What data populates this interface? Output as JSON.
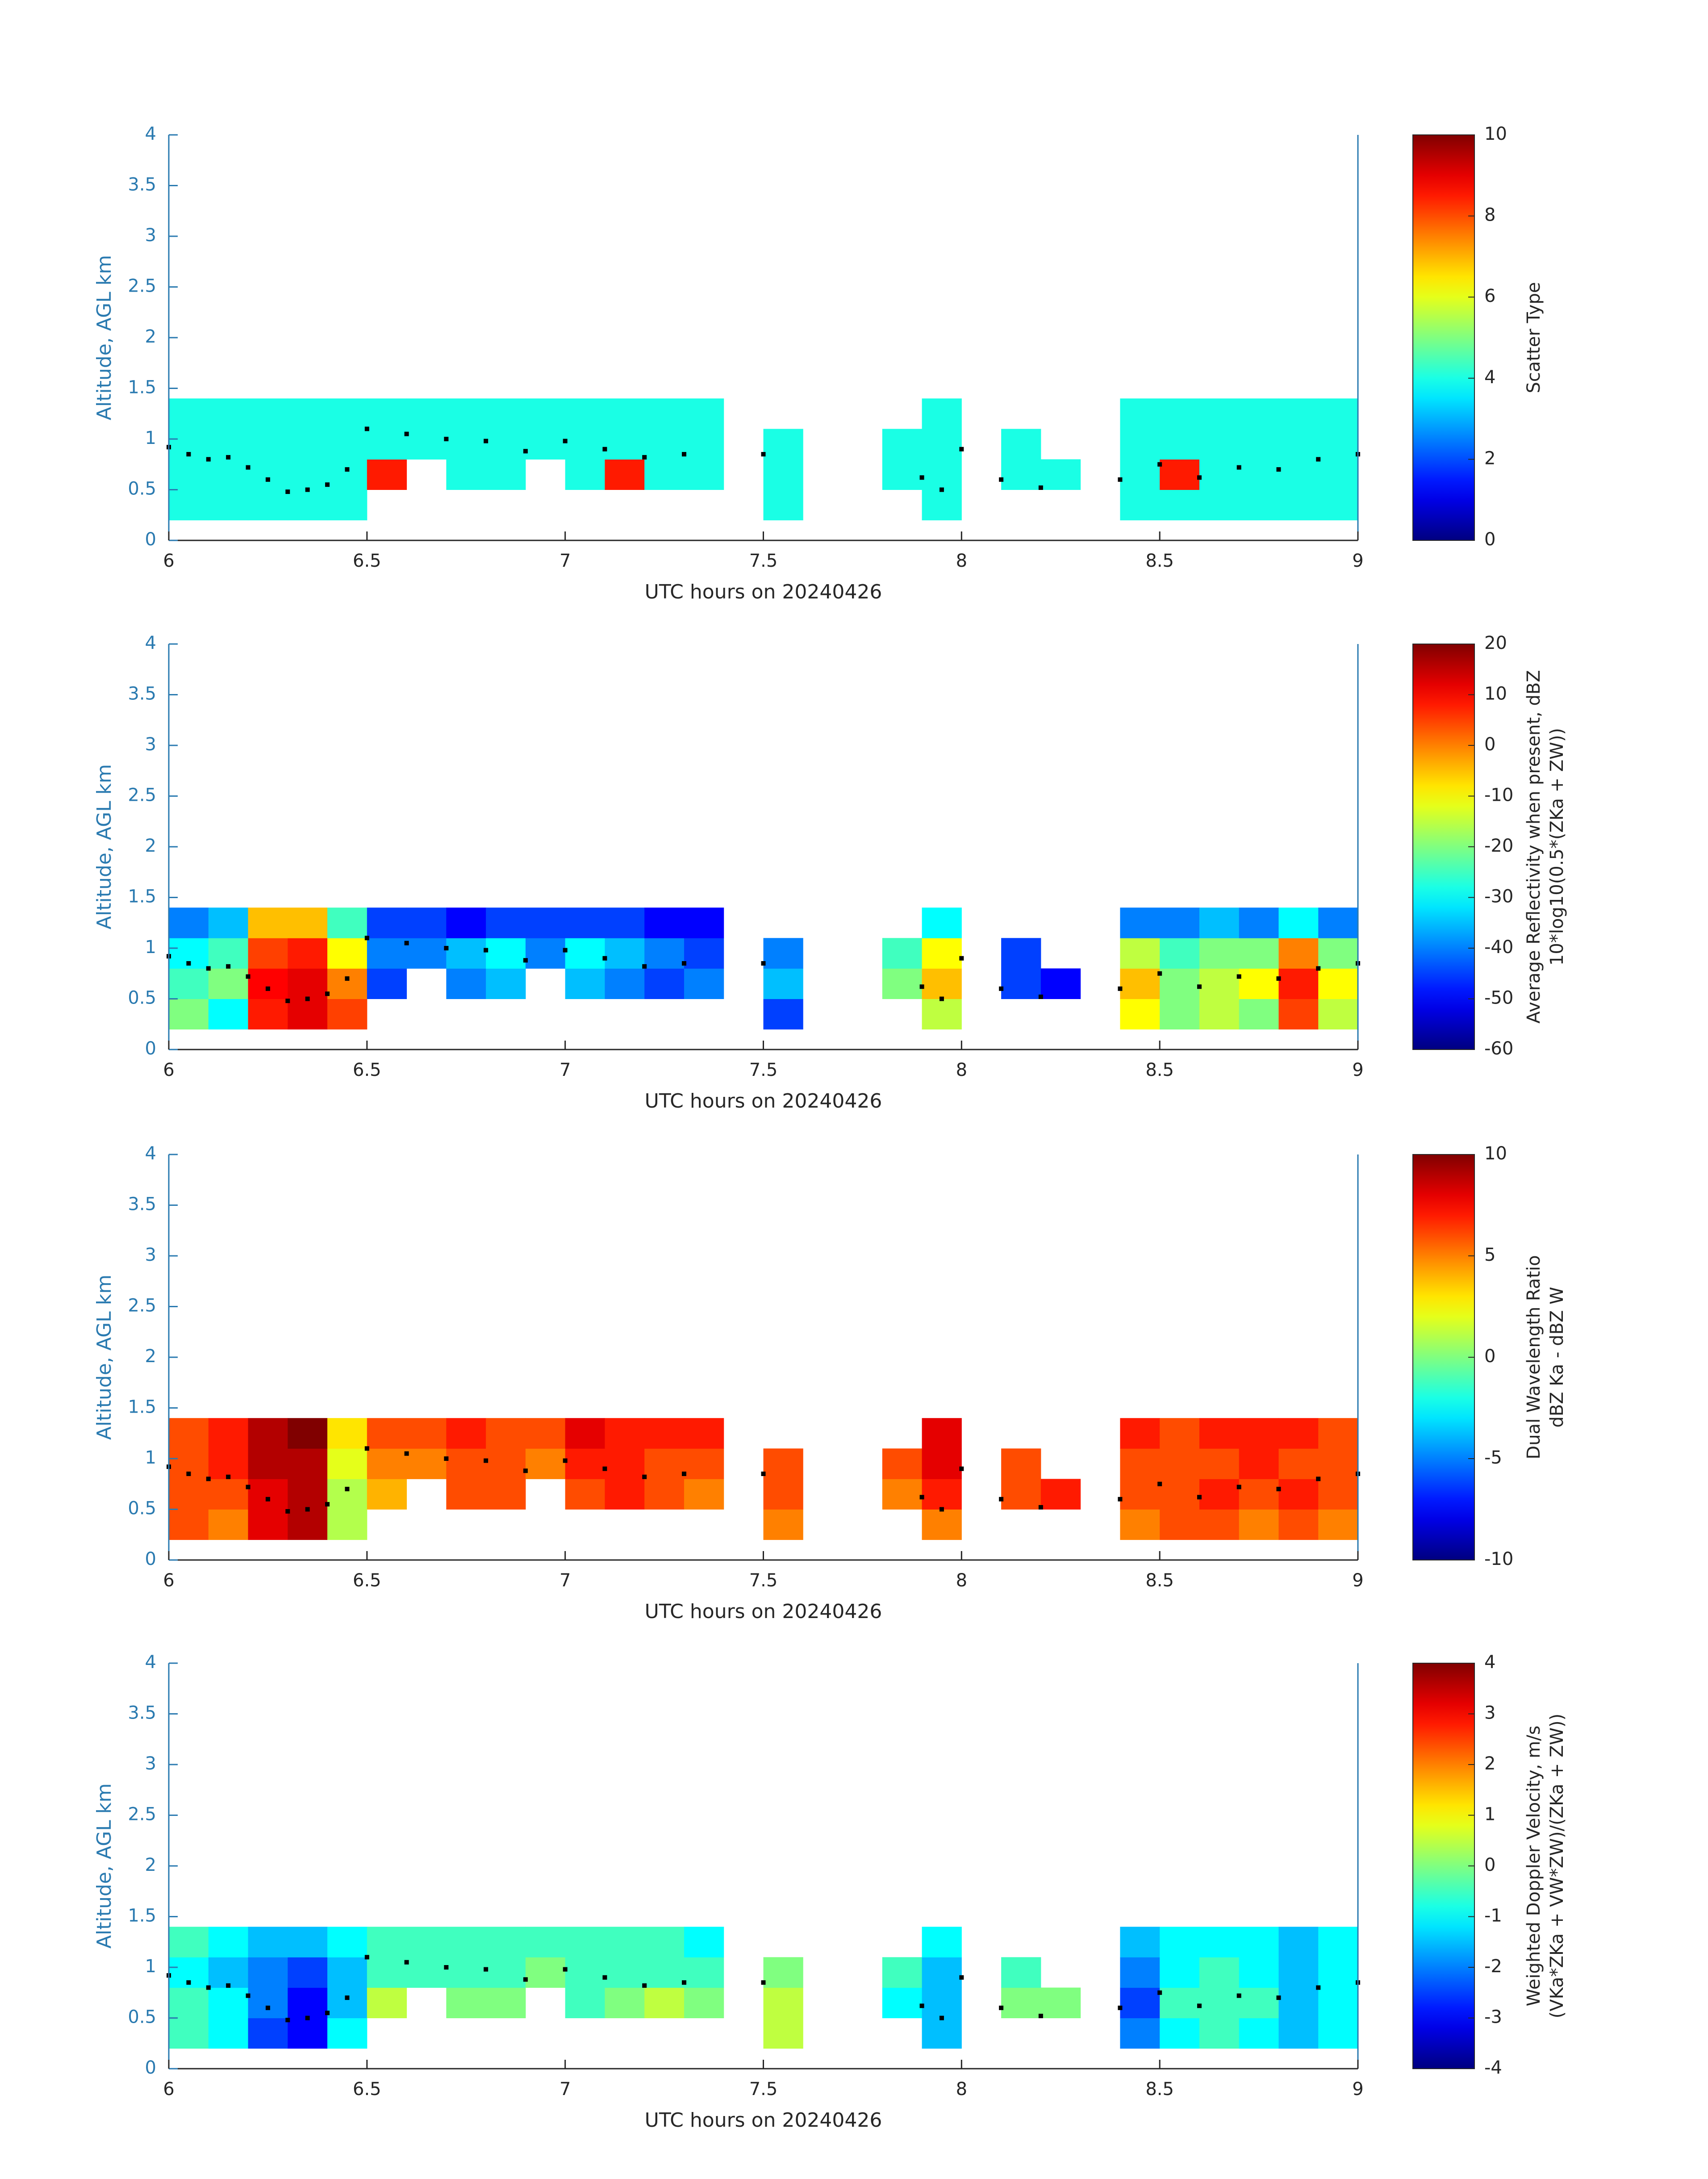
{
  "chart_data": [
    {
      "type": "heatmap",
      "xlabel": "UTC hours on 20240426",
      "ylabel": "Altitude, AGL km",
      "xlim": [
        6,
        9
      ],
      "xticks": [
        6,
        6.5,
        7,
        7.5,
        8,
        8.5,
        9
      ],
      "ylim": [
        0,
        4
      ],
      "yticks": [
        0,
        0.5,
        1,
        1.5,
        2,
        2.5,
        3,
        3.5,
        4
      ],
      "colormap": "jet",
      "clim": [
        0,
        10
      ],
      "cticks": [
        0,
        2,
        4,
        6,
        8,
        10
      ],
      "clabel": [
        "Scatter Type"
      ],
      "x_edges": [
        6,
        6.1,
        6.2,
        6.3,
        6.4,
        6.5,
        6.6,
        6.7,
        6.8,
        6.9,
        7,
        7.1,
        7.2,
        7.3,
        7.4,
        7.5,
        7.6,
        7.7,
        7.8,
        7.9,
        8,
        8.1,
        8.2,
        8.3,
        8.4,
        8.5,
        8.6,
        8.7,
        8.8,
        8.9,
        9
      ],
      "y_edges": [
        0.2,
        0.5,
        0.8,
        1.1,
        1.4
      ],
      "z": [
        [
          4,
          4,
          4,
          4,
          4,
          null,
          null,
          null,
          null,
          null,
          null,
          null,
          null,
          null,
          null,
          4,
          null,
          null,
          null,
          4,
          null,
          null,
          null,
          null,
          4,
          4,
          4,
          4,
          4,
          4
        ],
        [
          4,
          4,
          4,
          4,
          4,
          8.5,
          null,
          4,
          4,
          null,
          4,
          8.5,
          4,
          4,
          null,
          4,
          null,
          null,
          4,
          4,
          null,
          4,
          4,
          null,
          4,
          8.5,
          4,
          4,
          4,
          4
        ],
        [
          4,
          4,
          4,
          4,
          4,
          4,
          4,
          4,
          4,
          4,
          4,
          4,
          4,
          4,
          null,
          4,
          null,
          null,
          4,
          4,
          null,
          4,
          null,
          null,
          4,
          4,
          4,
          4,
          4,
          4
        ],
        [
          4,
          4,
          4,
          4,
          4,
          4,
          4,
          4,
          4,
          4,
          4,
          4,
          4,
          4,
          null,
          null,
          null,
          null,
          null,
          4,
          null,
          null,
          null,
          null,
          4,
          4,
          4,
          4,
          4,
          4
        ]
      ],
      "points": {
        "color": "#000000",
        "x": [
          6,
          6.05,
          6.1,
          6.15,
          6.2,
          6.25,
          6.3,
          6.35,
          6.4,
          6.45,
          6.5,
          6.6,
          6.7,
          6.8,
          6.9,
          7,
          7.1,
          7.2,
          7.3,
          7.5,
          7.9,
          7.95,
          8,
          8.1,
          8.2,
          8.4,
          8.5,
          8.6,
          8.7,
          8.8,
          8.9,
          9
        ],
        "y": [
          0.92,
          0.85,
          0.8,
          0.82,
          0.72,
          0.6,
          0.48,
          0.5,
          0.55,
          0.7,
          1.1,
          1.05,
          1,
          0.98,
          0.88,
          0.98,
          0.9,
          0.82,
          0.85,
          0.85,
          0.62,
          0.5,
          0.9,
          0.6,
          0.52,
          0.6,
          0.75,
          0.62,
          0.72,
          0.7,
          0.8,
          0.85
        ]
      }
    },
    {
      "type": "heatmap",
      "xlabel": "UTC hours on 20240426",
      "ylabel": "Altitude, AGL km",
      "xlim": [
        6,
        9
      ],
      "xticks": [
        6,
        6.5,
        7,
        7.5,
        8,
        8.5,
        9
      ],
      "ylim": [
        0,
        4
      ],
      "yticks": [
        0,
        0.5,
        1,
        1.5,
        2,
        2.5,
        3,
        3.5,
        4
      ],
      "colormap": "jet",
      "clim": [
        -60,
        20
      ],
      "cticks": [
        -60,
        -50,
        -40,
        -30,
        -20,
        -10,
        0,
        10,
        20
      ],
      "clabel": [
        "Average Reflectivity when present, dBZ",
        "10*log10(0.5*(ZKa + ZW))"
      ],
      "x_edges": [
        6,
        6.1,
        6.2,
        6.3,
        6.4,
        6.5,
        6.6,
        6.7,
        6.8,
        6.9,
        7,
        7.1,
        7.2,
        7.3,
        7.4,
        7.5,
        7.6,
        7.7,
        7.8,
        7.9,
        8,
        8.1,
        8.2,
        8.3,
        8.4,
        8.5,
        8.6,
        8.7,
        8.8,
        8.9,
        9
      ],
      "y_edges": [
        0.2,
        0.5,
        0.8,
        1.1,
        1.4
      ],
      "z": [
        [
          -20,
          -30,
          8,
          12,
          5,
          null,
          null,
          null,
          null,
          null,
          null,
          null,
          null,
          null,
          null,
          -45,
          null,
          null,
          null,
          -15,
          null,
          null,
          null,
          null,
          -10,
          -20,
          -15,
          -20,
          5,
          -15
        ],
        [
          -25,
          -20,
          10,
          12,
          0,
          -45,
          null,
          -40,
          -35,
          null,
          -35,
          -40,
          -45,
          -40,
          null,
          -35,
          null,
          null,
          -20,
          -5,
          null,
          -45,
          -50,
          null,
          -5,
          -20,
          -15,
          -10,
          8,
          -10
        ],
        [
          -30,
          -25,
          5,
          8,
          -10,
          -40,
          -40,
          -35,
          -30,
          -40,
          -30,
          -35,
          -40,
          -45,
          null,
          -40,
          null,
          null,
          -25,
          -10,
          null,
          -45,
          null,
          null,
          -15,
          -25,
          -20,
          -20,
          0,
          -20
        ],
        [
          -40,
          -35,
          -5,
          -5,
          -25,
          -45,
          -45,
          -50,
          -45,
          -45,
          -45,
          -45,
          -50,
          -50,
          null,
          null,
          null,
          null,
          null,
          -30,
          null,
          null,
          null,
          null,
          -40,
          -40,
          -35,
          -40,
          -30,
          -40
        ]
      ],
      "points": {
        "color": "#000000",
        "x": [
          6,
          6.05,
          6.1,
          6.15,
          6.2,
          6.25,
          6.3,
          6.35,
          6.4,
          6.45,
          6.5,
          6.6,
          6.7,
          6.8,
          6.9,
          7,
          7.1,
          7.2,
          7.3,
          7.5,
          7.9,
          7.95,
          8,
          8.1,
          8.2,
          8.4,
          8.5,
          8.6,
          8.7,
          8.8,
          8.9,
          9
        ],
        "y": [
          0.92,
          0.85,
          0.8,
          0.82,
          0.72,
          0.6,
          0.48,
          0.5,
          0.55,
          0.7,
          1.1,
          1.05,
          1,
          0.98,
          0.88,
          0.98,
          0.9,
          0.82,
          0.85,
          0.85,
          0.62,
          0.5,
          0.9,
          0.6,
          0.52,
          0.6,
          0.75,
          0.62,
          0.72,
          0.7,
          0.8,
          0.85
        ]
      }
    },
    {
      "type": "heatmap",
      "xlabel": "UTC hours on 20240426",
      "ylabel": "Altitude, AGL km",
      "xlim": [
        6,
        9
      ],
      "xticks": [
        6,
        6.5,
        7,
        7.5,
        8,
        8.5,
        9
      ],
      "ylim": [
        0,
        4
      ],
      "yticks": [
        0,
        0.5,
        1,
        1.5,
        2,
        2.5,
        3,
        3.5,
        4
      ],
      "colormap": "jet",
      "clim": [
        -10,
        10
      ],
      "cticks": [
        -10,
        -5,
        0,
        5,
        10
      ],
      "clabel": [
        "Dual Wavelength Ratio",
        "dBZ Ka - dBZ W"
      ],
      "x_edges": [
        6,
        6.1,
        6.2,
        6.3,
        6.4,
        6.5,
        6.6,
        6.7,
        6.8,
        6.9,
        7,
        7.1,
        7.2,
        7.3,
        7.4,
        7.5,
        7.6,
        7.7,
        7.8,
        7.9,
        8,
        8.1,
        8.2,
        8.3,
        8.4,
        8.5,
        8.6,
        8.7,
        8.8,
        8.9,
        9
      ],
      "y_edges": [
        0.2,
        0.5,
        0.8,
        1.1,
        1.4
      ],
      "z": [
        [
          6,
          5,
          8,
          9,
          1,
          null,
          null,
          null,
          null,
          null,
          null,
          null,
          null,
          null,
          null,
          5,
          null,
          null,
          null,
          5,
          null,
          null,
          null,
          null,
          5,
          6,
          6,
          5,
          6,
          5
        ],
        [
          6,
          6,
          8,
          9,
          1,
          4,
          null,
          6,
          6,
          null,
          6,
          7,
          6,
          5,
          null,
          6,
          null,
          null,
          5,
          7,
          null,
          6,
          7,
          null,
          6,
          6,
          7,
          6,
          7,
          6
        ],
        [
          6,
          7,
          9,
          9,
          2,
          5,
          5,
          6,
          6,
          5,
          7,
          7,
          6,
          6,
          null,
          6,
          null,
          null,
          6,
          8,
          null,
          6,
          null,
          null,
          6,
          6,
          6,
          7,
          6,
          6
        ],
        [
          6,
          7,
          9,
          10,
          3,
          6,
          6,
          7,
          6,
          6,
          8,
          7,
          7,
          7,
          null,
          null,
          null,
          null,
          null,
          8,
          null,
          null,
          null,
          null,
          7,
          6,
          7,
          7,
          7,
          6
        ]
      ],
      "points": {
        "color": "#000000",
        "x": [
          6,
          6.05,
          6.1,
          6.15,
          6.2,
          6.25,
          6.3,
          6.35,
          6.4,
          6.45,
          6.5,
          6.6,
          6.7,
          6.8,
          6.9,
          7,
          7.1,
          7.2,
          7.3,
          7.5,
          7.9,
          7.95,
          8,
          8.1,
          8.2,
          8.4,
          8.5,
          8.6,
          8.7,
          8.8,
          8.9,
          9
        ],
        "y": [
          0.92,
          0.85,
          0.8,
          0.82,
          0.72,
          0.6,
          0.48,
          0.5,
          0.55,
          0.7,
          1.1,
          1.05,
          1,
          0.98,
          0.88,
          0.98,
          0.9,
          0.82,
          0.85,
          0.85,
          0.62,
          0.5,
          0.9,
          0.6,
          0.52,
          0.6,
          0.75,
          0.62,
          0.72,
          0.7,
          0.8,
          0.85
        ]
      }
    },
    {
      "type": "heatmap",
      "xlabel": "UTC hours on 20240426",
      "ylabel": "Altitude, AGL km",
      "xlim": [
        6,
        9
      ],
      "xticks": [
        6,
        6.5,
        7,
        7.5,
        8,
        8.5,
        9
      ],
      "ylim": [
        0,
        4
      ],
      "yticks": [
        0,
        0.5,
        1,
        1.5,
        2,
        2.5,
        3,
        3.5,
        4
      ],
      "colormap": "jet",
      "clim": [
        -4,
        4
      ],
      "cticks": [
        -4,
        -3,
        -2,
        -1,
        0,
        1,
        2,
        3,
        4
      ],
      "clabel": [
        "Weighted Doppler Velocity, m/s",
        "(VKa*ZKa + VW*ZW)/(ZKa + ZW))"
      ],
      "x_edges": [
        6,
        6.1,
        6.2,
        6.3,
        6.4,
        6.5,
        6.6,
        6.7,
        6.8,
        6.9,
        7,
        7.1,
        7.2,
        7.3,
        7.4,
        7.5,
        7.6,
        7.7,
        7.8,
        7.9,
        8,
        8.1,
        8.2,
        8.3,
        8.4,
        8.5,
        8.6,
        8.7,
        8.8,
        8.9,
        9
      ],
      "y_edges": [
        0.2,
        0.5,
        0.8,
        1.1,
        1.4
      ],
      "z": [
        [
          -0.5,
          -1,
          -2.5,
          -3,
          -1,
          null,
          null,
          null,
          null,
          null,
          null,
          null,
          null,
          null,
          null,
          0.5,
          null,
          null,
          null,
          -1.5,
          null,
          null,
          null,
          null,
          -2,
          -1,
          -0.5,
          -1,
          -1.5,
          -1
        ],
        [
          -0.5,
          -1,
          -2,
          -3,
          -1.5,
          0.5,
          null,
          0,
          0,
          null,
          -0.5,
          0,
          0.5,
          0,
          null,
          0.5,
          null,
          null,
          -1,
          -1.5,
          null,
          0,
          0,
          null,
          -2.5,
          -0.5,
          -0.5,
          -0.5,
          -1.5,
          -1
        ],
        [
          -1,
          -1.5,
          -2,
          -2.5,
          -1.5,
          -0.5,
          -0.5,
          -0.5,
          -0.5,
          0,
          -0.5,
          -0.5,
          -0.5,
          -0.5,
          null,
          0,
          null,
          null,
          -0.5,
          -1.5,
          null,
          -0.5,
          null,
          null,
          -2,
          -1,
          -0.5,
          -1,
          -1.5,
          -1
        ],
        [
          -0.5,
          -1,
          -1.5,
          -1.5,
          -1,
          -0.5,
          -0.5,
          -0.5,
          -0.5,
          -0.5,
          -0.5,
          -0.5,
          -0.5,
          -1,
          null,
          null,
          null,
          null,
          null,
          -1,
          null,
          null,
          null,
          null,
          -1.5,
          -1,
          -1,
          -1,
          -1.5,
          -1
        ]
      ],
      "points": {
        "color": "#000000",
        "x": [
          6,
          6.05,
          6.1,
          6.15,
          6.2,
          6.25,
          6.3,
          6.35,
          6.4,
          6.45,
          6.5,
          6.6,
          6.7,
          6.8,
          6.9,
          7,
          7.1,
          7.2,
          7.3,
          7.5,
          7.9,
          7.95,
          8,
          8.1,
          8.2,
          8.4,
          8.5,
          8.6,
          8.7,
          8.8,
          8.9,
          9
        ],
        "y": [
          0.92,
          0.85,
          0.8,
          0.82,
          0.72,
          0.6,
          0.48,
          0.5,
          0.55,
          0.7,
          1.1,
          1.05,
          1,
          0.98,
          0.88,
          0.98,
          0.9,
          0.82,
          0.85,
          0.85,
          0.62,
          0.5,
          0.9,
          0.6,
          0.52,
          0.6,
          0.75,
          0.62,
          0.72,
          0.7,
          0.8,
          0.85
        ]
      }
    }
  ]
}
